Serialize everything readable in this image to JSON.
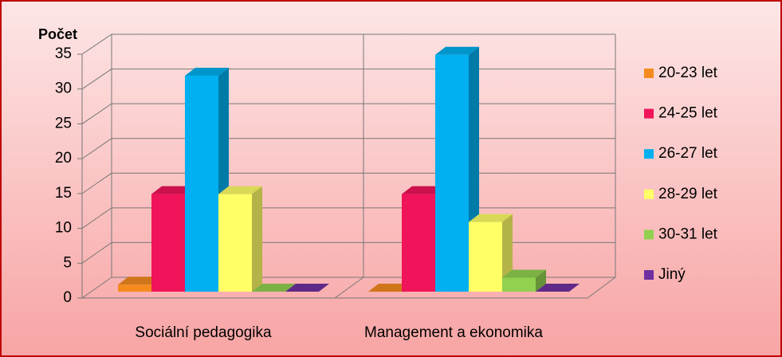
{
  "chart_data": {
    "type": "bar3d",
    "y_label": "Počet",
    "categories": [
      "Sociální pedagogika",
      "Management a ekonomika"
    ],
    "series": [
      {
        "name": "20-23 let",
        "color": "#f58b1f",
        "values": [
          1,
          0
        ]
      },
      {
        "name": "24-25 let",
        "color": "#f0145a",
        "values": [
          14,
          14
        ]
      },
      {
        "name": "26-27 let",
        "color": "#00b0f0",
        "values": [
          31,
          34
        ]
      },
      {
        "name": "28-29 let",
        "color": "#ffff66",
        "values": [
          14,
          10
        ]
      },
      {
        "name": "30-31 let",
        "color": "#92d050",
        "values": [
          0,
          2
        ]
      },
      {
        "name": "Jiný",
        "color": "#7030a0",
        "values": [
          0,
          0
        ]
      }
    ],
    "ylim": [
      0,
      35
    ],
    "yticks": [
      0,
      5,
      10,
      15,
      20,
      25,
      30,
      35
    ],
    "grid": true,
    "legend": "right"
  }
}
